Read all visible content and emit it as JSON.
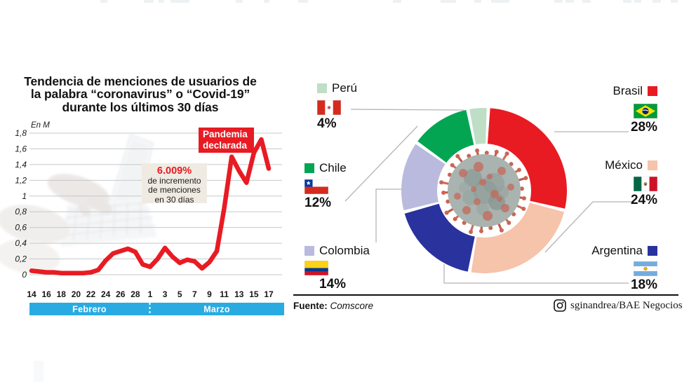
{
  "title_lines": [
    "Tendencia de menciones de usuarios de",
    "la palabra “coronavirus” o “Covid-19”",
    "durante los últimos 30 días"
  ],
  "colors": {
    "accent_red": "#e81b23",
    "month_bar_blue": "#29abe2",
    "callout_bg": "#f0ebe2",
    "grid_gray": "#c6c8ca",
    "leader_gray": "#b5b5b5"
  },
  "chart_data": [
    {
      "type": "line",
      "title": "Tendencia de menciones de usuarios de la palabra “coronavirus” o “Covid-19” durante los últimos 30 días",
      "unit_label": "En M",
      "x": [
        "14 feb",
        "15 feb",
        "16 feb",
        "17 feb",
        "18 feb",
        "19 feb",
        "20 feb",
        "21 feb",
        "22 feb",
        "23 feb",
        "24 feb",
        "25 feb",
        "26 feb",
        "27 feb",
        "28 feb",
        "29 feb",
        "1 mar",
        "2 mar",
        "3 mar",
        "4 mar",
        "5 mar",
        "6 mar",
        "7 mar",
        "8 mar",
        "9 mar",
        "10 mar",
        "11 mar",
        "12 mar",
        "13 mar",
        "14 mar",
        "15 mar",
        "16 mar",
        "17 mar"
      ],
      "values": [
        0.05,
        0.04,
        0.03,
        0.03,
        0.02,
        0.02,
        0.02,
        0.02,
        0.03,
        0.06,
        0.18,
        0.27,
        0.3,
        0.33,
        0.29,
        0.13,
        0.1,
        0.2,
        0.34,
        0.23,
        0.15,
        0.19,
        0.17,
        0.08,
        0.16,
        0.3,
        0.85,
        1.5,
        1.32,
        1.17,
        1.55,
        1.72,
        1.35
      ],
      "x_tick_labels": [
        "14",
        "16",
        "18",
        "20",
        "22",
        "24",
        "26",
        "28",
        "1",
        "3",
        "5",
        "7",
        "9",
        "11",
        "13",
        "15",
        "17"
      ],
      "y_tick_labels": [
        "1,8",
        "1,6",
        "1,4",
        "1,2",
        "1",
        "0,8",
        "0,6",
        "0,4",
        "0,2",
        "0"
      ],
      "y_tick_values": [
        1.8,
        1.6,
        1.4,
        1.2,
        1.0,
        0.8,
        0.6,
        0.4,
        0.2,
        0
      ],
      "ylim": [
        0,
        1.8
      ],
      "month_labels": [
        "Febrero",
        "Marzo"
      ],
      "callout": {
        "highlight": "6.009%",
        "lines": [
          "de incremento",
          "de menciones",
          "en 30 días"
        ]
      },
      "event_label_lines": [
        "Pandemia",
        "declarada"
      ]
    },
    {
      "type": "donut",
      "start_angle_deg": 3,
      "center_icon": "coronavirus",
      "slices": [
        {
          "label": "Brasil",
          "value": 28,
          "pct_label": "28%",
          "color": "#e81b23",
          "flag": "brasil"
        },
        {
          "label": "México",
          "value": 24,
          "pct_label": "24%",
          "color": "#f6c3ab",
          "flag": "mexico"
        },
        {
          "label": "Argentina",
          "value": 18,
          "pct_label": "18%",
          "color": "#2a329e",
          "flag": "argentina"
        },
        {
          "label": "Colombia",
          "value": 14,
          "pct_label": "14%",
          "color": "#b9badd",
          "flag": "colombia"
        },
        {
          "label": "Chile",
          "value": 12,
          "pct_label": "12%",
          "color": "#04a552",
          "flag": "chile"
        },
        {
          "label": "Perú",
          "value": 4,
          "pct_label": "4%",
          "color": "#bfdec6",
          "flag": "peru"
        }
      ]
    }
  ],
  "footer": {
    "source_label": "Fuente:",
    "source_value": "Comscore",
    "credit_handle": "sginandrea/BAE Negocios"
  }
}
